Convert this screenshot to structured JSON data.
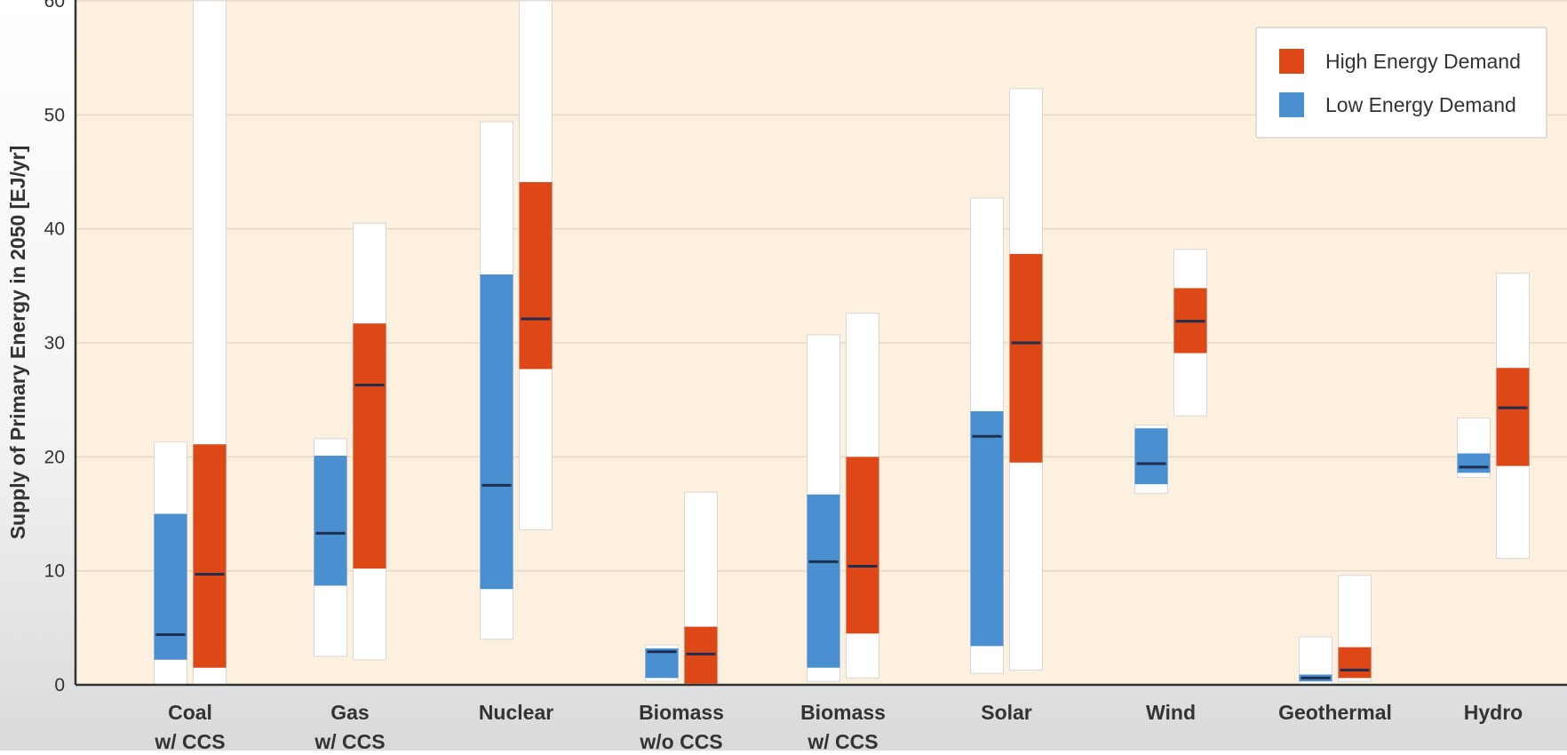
{
  "chart_data": {
    "type": "bar",
    "subtype": "range-bars",
    "title": "",
    "xlabel": "",
    "ylabel": "Supply of Primary Energy in 2050 [EJ/yr]",
    "ylim": [
      0,
      60
    ],
    "yticks": [
      0,
      10,
      20,
      30,
      40,
      50,
      60
    ],
    "grid": true,
    "legend_position": "top-right",
    "categories": [
      [
        "Coal",
        "w/ CCS"
      ],
      [
        "Gas",
        "w/ CCS"
      ],
      [
        "Nuclear"
      ],
      [
        "Biomass",
        "w/o CCS"
      ],
      [
        "Biomass",
        "w/ CCS"
      ],
      [
        "Solar"
      ],
      [
        "Wind"
      ],
      [
        "Geothermal"
      ],
      [
        "Hydro"
      ]
    ],
    "series": [
      {
        "name": "Low Energy Demand",
        "color": "#4a8fcf",
        "min": [
          0,
          2.5,
          4,
          0.3,
          0.3,
          1,
          16.8,
          0,
          18.2
        ],
        "p25": [
          2.2,
          8.7,
          8.4,
          0.6,
          1.5,
          3.4,
          17.6,
          0.3,
          18.6
        ],
        "median": [
          4.4,
          13.3,
          17.5,
          2.9,
          10.8,
          21.8,
          19.4,
          0.6,
          19.1
        ],
        "p75": [
          15,
          20.1,
          36,
          3.2,
          16.7,
          24,
          22.5,
          0.9,
          20.3
        ],
        "max": [
          21.3,
          21.6,
          49.4,
          3.5,
          30.7,
          42.7,
          22.8,
          4.2,
          23.4
        ]
      },
      {
        "name": "High Energy Demand",
        "color": "#dd4816",
        "min": [
          0,
          2.2,
          13.6,
          0,
          0.6,
          1.3,
          23.6,
          0.3,
          11.1
        ],
        "p25": [
          1.5,
          10.2,
          27.7,
          0.1,
          4.5,
          19.5,
          29.1,
          0.6,
          19.2
        ],
        "median": [
          9.7,
          26.3,
          32.1,
          2.7,
          10.4,
          30.0,
          31.9,
          1.3,
          24.3
        ],
        "p75": [
          21.1,
          31.7,
          44.1,
          5.1,
          20.0,
          37.8,
          34.8,
          3.3,
          27.8
        ],
        "max": [
          60,
          40.5,
          60,
          16.9,
          32.6,
          52.3,
          38.2,
          9.6,
          36.1
        ]
      }
    ],
    "legend": [
      {
        "label": "High Energy Demand",
        "color": "#dd4816"
      },
      {
        "label": "Low Energy Demand",
        "color": "#4a8fcf"
      }
    ],
    "colors": {
      "plot_background": "#fdf0de",
      "gridline": "#e6d9c6",
      "range_box": "#ffffff",
      "median_line": "#1f2d4f"
    }
  }
}
